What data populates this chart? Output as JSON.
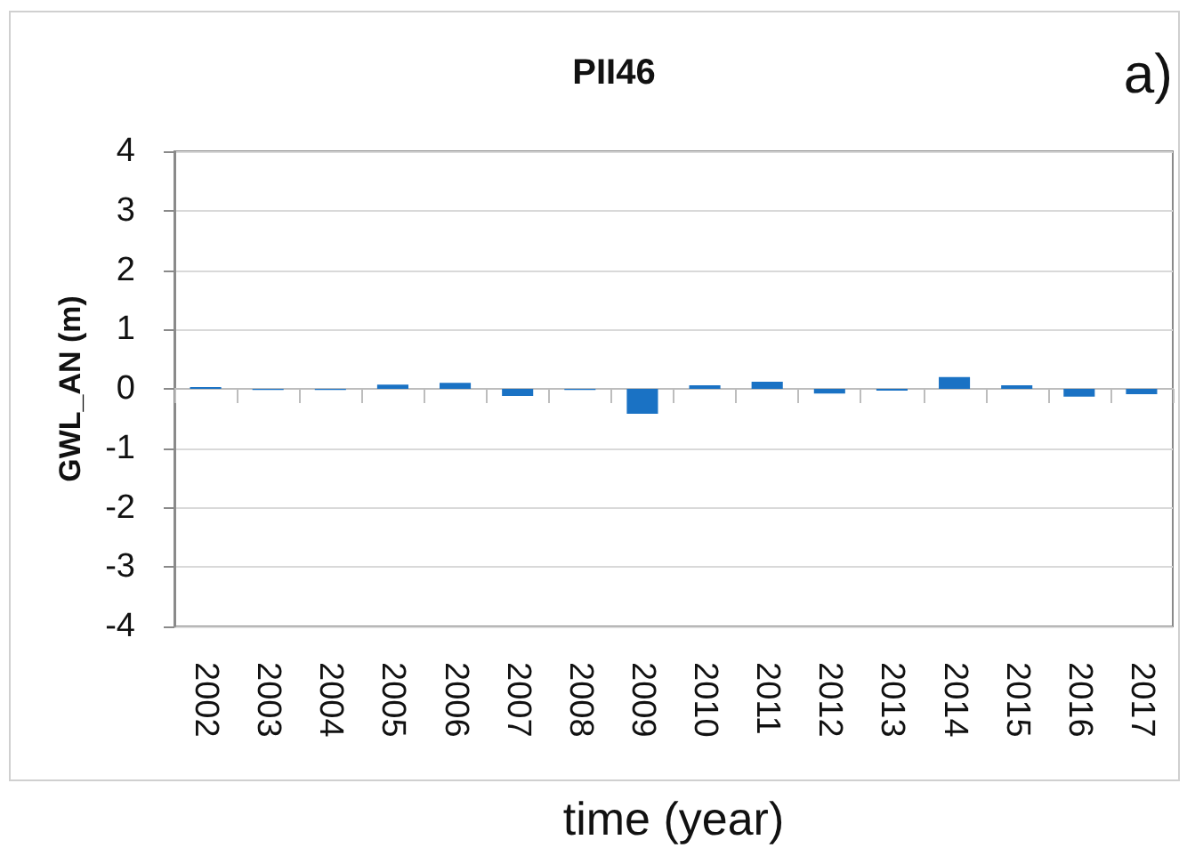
{
  "chart_data": {
    "type": "bar",
    "title": "PII46",
    "xlabel": "time (year)",
    "ylabel": "GWL_AN (m)",
    "annotations": [
      "a)"
    ],
    "categories": [
      "2002",
      "2003",
      "2004",
      "2005",
      "2006",
      "2007",
      "2008",
      "2009",
      "2010",
      "2011",
      "2012",
      "2013",
      "2014",
      "2015",
      "2016",
      "2017"
    ],
    "values": [
      0.03,
      -0.02,
      -0.02,
      0.07,
      0.1,
      -0.12,
      -0.02,
      -0.42,
      0.06,
      0.12,
      -0.08,
      -0.03,
      0.2,
      0.06,
      -0.13,
      -0.09
    ],
    "color": "#1a72c4",
    "ylim": [
      -4,
      4
    ],
    "yticks": [
      -4,
      -3,
      -2,
      -1,
      0,
      1,
      2,
      3,
      4
    ],
    "grid": "y"
  }
}
